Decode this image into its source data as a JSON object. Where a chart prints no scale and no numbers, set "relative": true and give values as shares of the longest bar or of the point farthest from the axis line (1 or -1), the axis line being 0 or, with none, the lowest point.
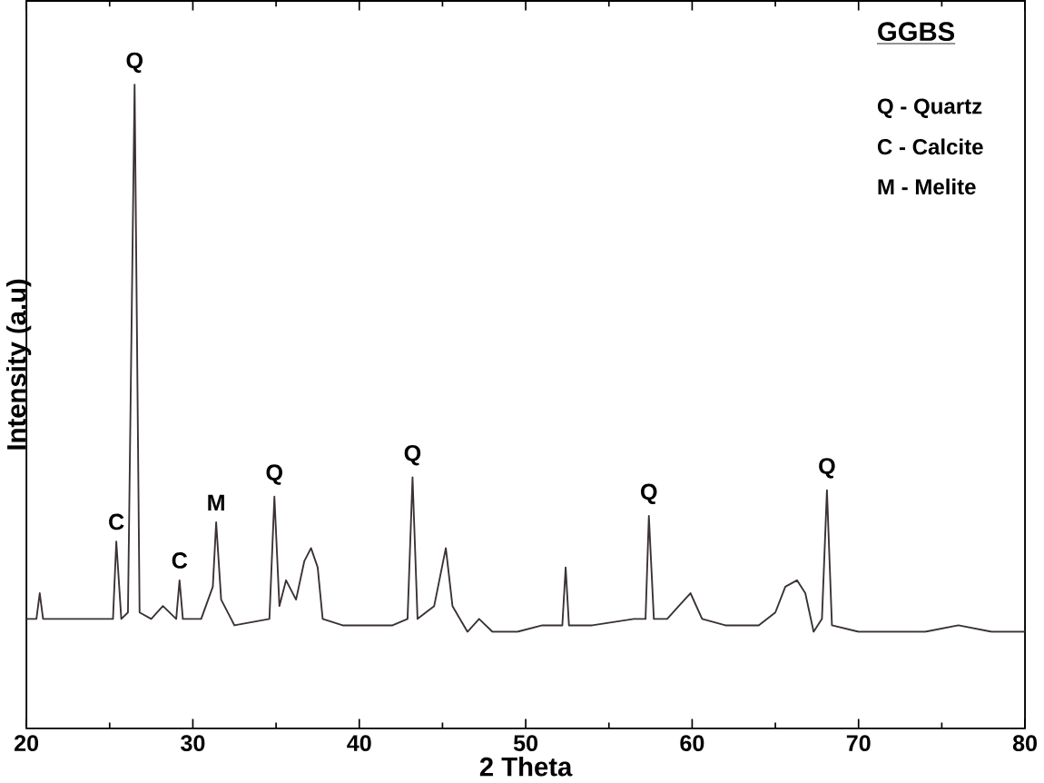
{
  "chart_data": {
    "type": "line",
    "xlabel": "2 Theta",
    "ylabel": "Intensity (a.u)",
    "relative": true,
    "xlim": [
      20,
      80
    ],
    "xticks": [
      20,
      30,
      40,
      50,
      60,
      70,
      80
    ],
    "tick_labels": "x",
    "color": "#3a3234",
    "x": [
      20,
      20.6,
      20.8,
      21.0,
      23,
      25.2,
      25.4,
      25.7,
      26.1,
      26.5,
      26.8,
      27.5,
      28.2,
      29.0,
      29.2,
      29.4,
      30.5,
      31.2,
      31.4,
      31.7,
      32.5,
      34.6,
      34.9,
      35.2,
      35.6,
      36.2,
      36.7,
      37.1,
      37.5,
      37.8,
      39,
      42,
      42.9,
      43.2,
      43.5,
      44.5,
      45.2,
      45.6,
      46.5,
      47.2,
      48,
      49.5,
      51,
      52.2,
      52.4,
      52.6,
      54,
      56.5,
      57.2,
      57.4,
      57.7,
      58.5,
      59.2,
      59.9,
      60.6,
      62,
      64,
      65,
      65.6,
      66.3,
      66.8,
      67.3,
      67.8,
      68.1,
      68.4,
      70,
      74,
      76,
      78,
      80
    ],
    "values": [
      0.17,
      0.17,
      0.21,
      0.17,
      0.17,
      0.17,
      0.29,
      0.17,
      0.18,
      1.0,
      0.18,
      0.17,
      0.19,
      0.17,
      0.23,
      0.17,
      0.17,
      0.22,
      0.32,
      0.2,
      0.16,
      0.17,
      0.36,
      0.19,
      0.23,
      0.2,
      0.26,
      0.28,
      0.25,
      0.17,
      0.16,
      0.16,
      0.17,
      0.39,
      0.17,
      0.19,
      0.28,
      0.19,
      0.15,
      0.17,
      0.15,
      0.15,
      0.16,
      0.16,
      0.25,
      0.16,
      0.16,
      0.17,
      0.17,
      0.33,
      0.17,
      0.17,
      0.19,
      0.21,
      0.17,
      0.16,
      0.16,
      0.18,
      0.22,
      0.23,
      0.21,
      0.15,
      0.17,
      0.37,
      0.16,
      0.15,
      0.15,
      0.16,
      0.15,
      0.15
    ],
    "annotations": [
      {
        "text": "C",
        "x": 25.4,
        "y": 0.29
      },
      {
        "text": "Q",
        "x": 26.5,
        "y": 1.0
      },
      {
        "text": "C",
        "x": 29.2,
        "y": 0.23
      },
      {
        "text": "M",
        "x": 31.4,
        "y": 0.32
      },
      {
        "text": "Q",
        "x": 34.9,
        "y": 0.36
      },
      {
        "text": "Q",
        "x": 43.2,
        "y": 0.39
      },
      {
        "text": "Q",
        "x": 57.4,
        "y": 0.33
      },
      {
        "text": "Q",
        "x": 68.1,
        "y": 0.37
      },
      "GGBS",
      "Q - Quartz",
      "C - Calcite",
      "M - Melite"
    ]
  }
}
